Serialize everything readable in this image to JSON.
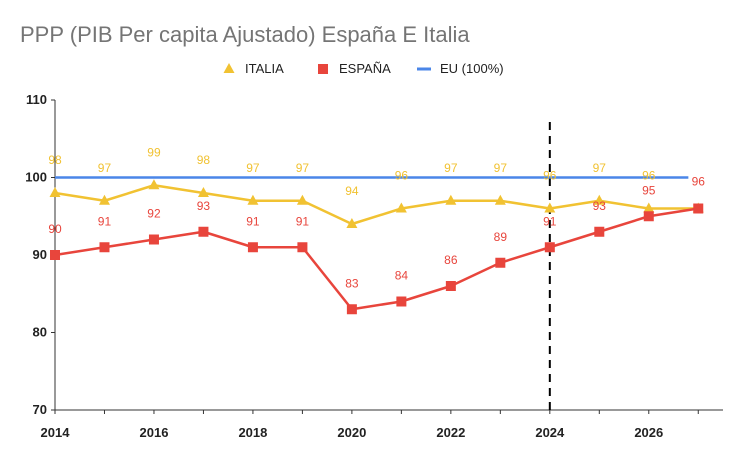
{
  "chart_data": {
    "type": "line",
    "title": "PPP (PIB Per capita Ajustado) España E Italia",
    "xlabel": "",
    "ylabel": "",
    "x": [
      2014,
      2015,
      2016,
      2017,
      2018,
      2019,
      2020,
      2021,
      2022,
      2023,
      2024,
      2025,
      2026,
      2027
    ],
    "xlim": [
      2014,
      2027.5
    ],
    "ylim": [
      70,
      110
    ],
    "x_ticks": [
      "2014",
      "2016",
      "2018",
      "2020",
      "2022",
      "2024",
      "2026"
    ],
    "y_ticks": [
      "70",
      "80",
      "90",
      "100",
      "110"
    ],
    "legend_position": "top",
    "grid": false,
    "vertical_marker_x": 2024,
    "series": [
      {
        "name": "ITALIA",
        "color": "#f1c232",
        "marker": "triangle",
        "values": [
          98,
          97,
          99,
          98,
          97,
          97,
          94,
          96,
          97,
          97,
          96,
          97,
          96,
          96
        ],
        "labels": [
          "98",
          "97",
          "99",
          "98",
          "97",
          "97",
          "94",
          "96",
          "97",
          "97",
          "96",
          "97",
          "96",
          ""
        ]
      },
      {
        "name": "ESPAÑA",
        "color": "#e8453c",
        "marker": "square",
        "values": [
          90,
          91,
          92,
          93,
          91,
          91,
          83,
          84,
          86,
          89,
          91,
          93,
          95,
          96
        ],
        "labels": [
          "90",
          "91",
          "92",
          "93",
          "91",
          "91",
          "83",
          "84",
          "86",
          "89",
          "91",
          "93",
          "95",
          "96"
        ]
      },
      {
        "name": "EU (100%)",
        "color": "#4a86e8",
        "marker": "none",
        "values": [
          100,
          100,
          100,
          100,
          100,
          100,
          100,
          100,
          100,
          100,
          100,
          100,
          100,
          100
        ],
        "x_end": 2026.8,
        "labels": []
      }
    ]
  }
}
